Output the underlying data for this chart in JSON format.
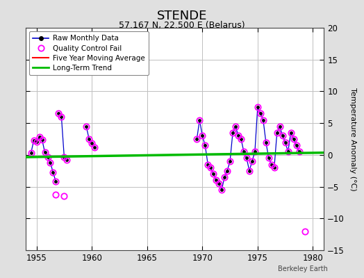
{
  "title": "STENDE",
  "subtitle": "57.167 N, 22.500 E (Belarus)",
  "ylabel": "Temperature Anomaly (°C)",
  "xlim": [
    1954,
    1981
  ],
  "ylim": [
    -15,
    20
  ],
  "yticks": [
    -15,
    -10,
    -5,
    0,
    5,
    10,
    15,
    20
  ],
  "xticks": [
    1955,
    1960,
    1965,
    1970,
    1975,
    1980
  ],
  "background_color": "#e0e0e0",
  "plot_bg_color": "#ffffff",
  "grid_color": "#c0c0c0",
  "raw_line_color": "#0000cc",
  "raw_marker_color": "#000000",
  "qc_fail_color": "#ff00ff",
  "moving_avg_color": "#ff0000",
  "trend_color": "#00bb00",
  "watermark": "Berkeley Earth",
  "connected_segments": [
    [
      [
        1954.5,
        0.3
      ],
      [
        1954.75,
        2.3
      ],
      [
        1955.0,
        2.1
      ],
      [
        1955.25,
        2.8
      ],
      [
        1955.5,
        2.4
      ],
      [
        1955.75,
        0.4
      ],
      [
        1956.0,
        -0.3
      ],
      [
        1956.25,
        -1.2
      ],
      [
        1956.5,
        -2.8
      ],
      [
        1956.75,
        -4.2
      ]
    ],
    [
      [
        1957.0,
        6.5
      ],
      [
        1957.25,
        6.0
      ],
      [
        1957.5,
        -0.3
      ],
      [
        1957.75,
        -0.8
      ]
    ],
    [
      [
        1959.5,
        4.5
      ],
      [
        1959.75,
        2.5
      ],
      [
        1960.0,
        1.8
      ],
      [
        1960.25,
        1.2
      ]
    ],
    [
      [
        1969.5,
        2.5
      ],
      [
        1969.75,
        5.5
      ],
      [
        1970.0,
        3.0
      ],
      [
        1970.25,
        1.5
      ],
      [
        1970.5,
        -1.5
      ],
      [
        1970.75,
        -2.0
      ],
      [
        1971.0,
        -3.0
      ],
      [
        1971.25,
        -4.0
      ],
      [
        1971.5,
        -4.5
      ],
      [
        1971.75,
        -5.5
      ],
      [
        1972.0,
        -3.5
      ],
      [
        1972.25,
        -2.5
      ],
      [
        1972.5,
        -1.0
      ],
      [
        1972.75,
        3.5
      ],
      [
        1973.0,
        4.5
      ],
      [
        1973.25,
        3.0
      ],
      [
        1973.5,
        2.5
      ],
      [
        1973.75,
        0.5
      ],
      [
        1974.0,
        -0.5
      ],
      [
        1974.25,
        -2.5
      ],
      [
        1974.5,
        -1.0
      ],
      [
        1974.75,
        0.5
      ],
      [
        1975.0,
        7.5
      ],
      [
        1975.25,
        6.5
      ],
      [
        1975.5,
        5.5
      ],
      [
        1975.75,
        2.0
      ],
      [
        1976.0,
        -0.5
      ],
      [
        1976.25,
        -1.5
      ],
      [
        1976.5,
        -2.0
      ],
      [
        1976.75,
        3.5
      ],
      [
        1977.0,
        4.5
      ],
      [
        1977.25,
        3.0
      ],
      [
        1977.5,
        2.0
      ],
      [
        1977.75,
        0.5
      ],
      [
        1978.0,
        3.5
      ],
      [
        1978.25,
        2.5
      ],
      [
        1978.5,
        1.5
      ],
      [
        1978.75,
        0.5
      ]
    ]
  ],
  "qc_fail_points": [
    [
      1954.5,
      0.3
    ],
    [
      1954.75,
      2.3
    ],
    [
      1955.0,
      2.1
    ],
    [
      1955.25,
      2.8
    ],
    [
      1955.5,
      2.4
    ],
    [
      1955.75,
      0.4
    ],
    [
      1956.0,
      -0.3
    ],
    [
      1956.25,
      -1.2
    ],
    [
      1956.5,
      -2.8
    ],
    [
      1956.75,
      -4.2
    ],
    [
      1957.0,
      6.5
    ],
    [
      1957.25,
      6.0
    ],
    [
      1957.5,
      -0.3
    ],
    [
      1957.75,
      -0.8
    ],
    [
      1956.75,
      -6.3
    ],
    [
      1957.5,
      -6.5
    ],
    [
      1959.5,
      4.5
    ],
    [
      1959.75,
      2.5
    ],
    [
      1960.0,
      1.8
    ],
    [
      1960.25,
      1.2
    ],
    [
      1969.5,
      2.5
    ],
    [
      1969.75,
      5.5
    ],
    [
      1970.0,
      3.0
    ],
    [
      1970.25,
      1.5
    ],
    [
      1970.5,
      -1.5
    ],
    [
      1970.75,
      -2.0
    ],
    [
      1971.0,
      -3.0
    ],
    [
      1971.25,
      -4.0
    ],
    [
      1971.5,
      -4.5
    ],
    [
      1971.75,
      -5.5
    ],
    [
      1972.0,
      -3.5
    ],
    [
      1972.25,
      -2.5
    ],
    [
      1972.5,
      -1.0
    ],
    [
      1972.75,
      3.5
    ],
    [
      1973.0,
      4.5
    ],
    [
      1973.25,
      3.0
    ],
    [
      1973.5,
      2.5
    ],
    [
      1973.75,
      0.5
    ],
    [
      1974.0,
      -0.5
    ],
    [
      1974.25,
      -2.5
    ],
    [
      1974.5,
      -1.0
    ],
    [
      1974.75,
      0.5
    ],
    [
      1975.0,
      7.5
    ],
    [
      1975.25,
      6.5
    ],
    [
      1975.5,
      5.5
    ],
    [
      1975.75,
      2.0
    ],
    [
      1976.0,
      -0.5
    ],
    [
      1976.25,
      -1.5
    ],
    [
      1976.5,
      -2.0
    ],
    [
      1976.75,
      3.5
    ],
    [
      1977.0,
      4.5
    ],
    [
      1977.25,
      3.0
    ],
    [
      1977.5,
      2.0
    ],
    [
      1977.75,
      0.5
    ],
    [
      1978.0,
      3.5
    ],
    [
      1978.25,
      2.5
    ],
    [
      1978.5,
      1.5
    ],
    [
      1978.75,
      0.5
    ],
    [
      1979.25,
      -12.0
    ]
  ],
  "trend_x": [
    1954,
    1981
  ],
  "trend_y": [
    -0.35,
    0.35
  ]
}
